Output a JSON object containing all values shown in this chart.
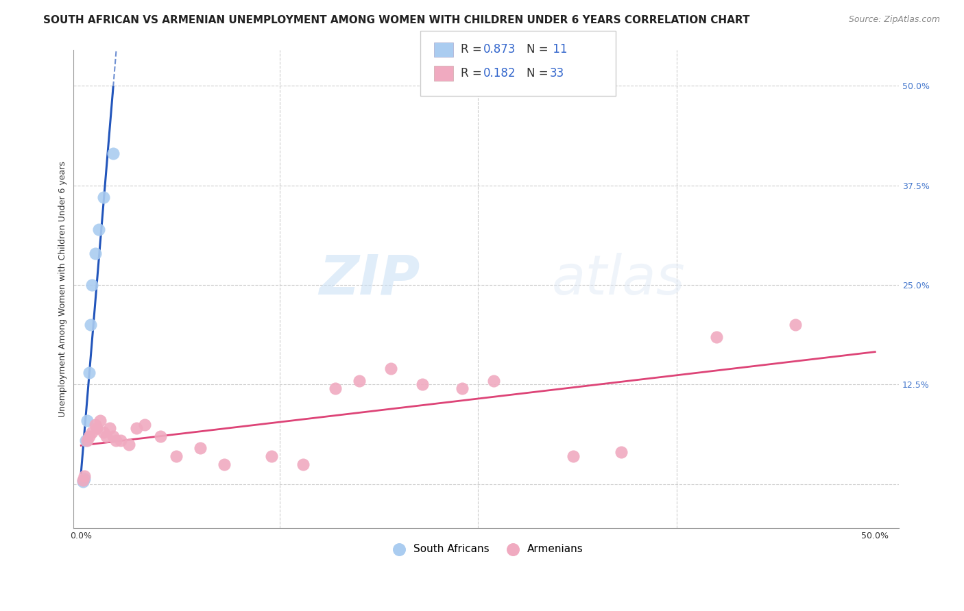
{
  "title": "SOUTH AFRICAN VS ARMENIAN UNEMPLOYMENT AMONG WOMEN WITH CHILDREN UNDER 6 YEARS CORRELATION CHART",
  "source": "Source: ZipAtlas.com",
  "ylabel": "Unemployment Among Women with Children Under 6 years",
  "watermark_zip": "ZIP",
  "watermark_atlas": "atlas",
  "xlim": [
    -0.005,
    0.515
  ],
  "ylim": [
    -0.055,
    0.545
  ],
  "yticks": [
    0.0,
    0.125,
    0.25,
    0.375,
    0.5
  ],
  "ytick_labels": [
    "",
    "12.5%",
    "25.0%",
    "37.5%",
    "50.0%"
  ],
  "sa_color": "#aaccf0",
  "arm_color": "#f0aac0",
  "sa_line_color": "#2255bb",
  "arm_line_color": "#dd4477",
  "sa_x": [
    0.001,
    0.002,
    0.003,
    0.004,
    0.005,
    0.006,
    0.007,
    0.009,
    0.011,
    0.014,
    0.02
  ],
  "sa_y": [
    0.003,
    0.007,
    0.055,
    0.08,
    0.14,
    0.2,
    0.25,
    0.29,
    0.32,
    0.36,
    0.415
  ],
  "arm_x": [
    0.001,
    0.002,
    0.004,
    0.005,
    0.007,
    0.009,
    0.01,
    0.012,
    0.014,
    0.016,
    0.018,
    0.02,
    0.022,
    0.025,
    0.03,
    0.035,
    0.04,
    0.05,
    0.06,
    0.075,
    0.09,
    0.12,
    0.14,
    0.16,
    0.175,
    0.195,
    0.215,
    0.24,
    0.26,
    0.31,
    0.34,
    0.4,
    0.45
  ],
  "arm_y": [
    0.005,
    0.01,
    0.055,
    0.06,
    0.065,
    0.075,
    0.07,
    0.08,
    0.065,
    0.06,
    0.07,
    0.06,
    0.055,
    0.055,
    0.05,
    0.07,
    0.075,
    0.06,
    0.035,
    0.045,
    0.025,
    0.035,
    0.025,
    0.12,
    0.13,
    0.145,
    0.125,
    0.12,
    0.13,
    0.035,
    0.04,
    0.185,
    0.2
  ],
  "title_fontsize": 11,
  "source_fontsize": 9,
  "ylabel_fontsize": 9,
  "tick_fontsize": 9
}
